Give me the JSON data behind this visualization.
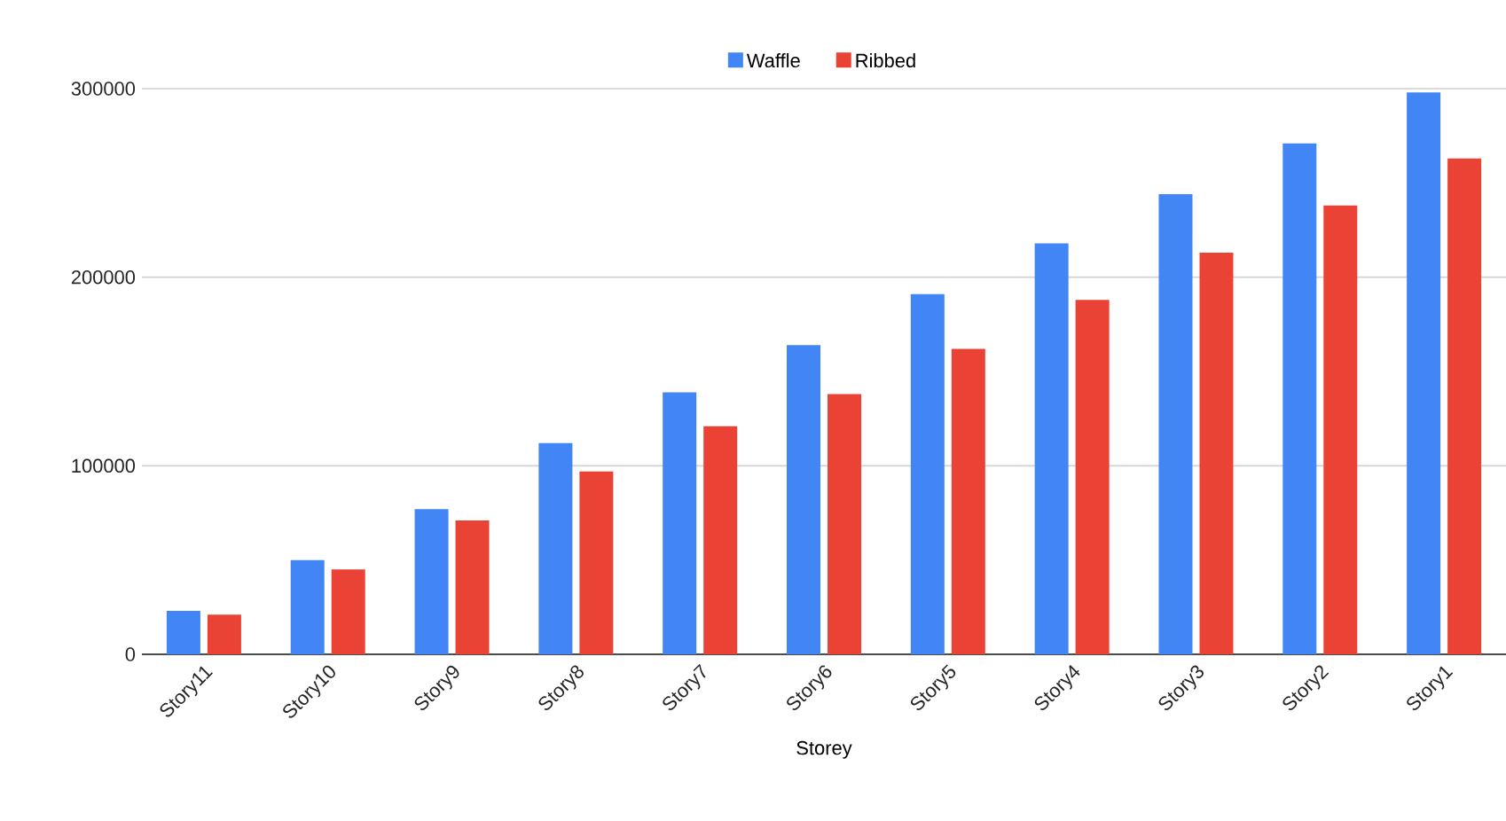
{
  "chart_data": {
    "type": "bar",
    "xlabel": "Storey",
    "categories": [
      "Story11",
      "Story10",
      "Story9",
      "Story8",
      "Story7",
      "Story6",
      "Story5",
      "Story4",
      "Story3",
      "Story2",
      "Story1"
    ],
    "series": [
      {
        "name": "Waffle",
        "color": "#4285f4",
        "values": [
          23000,
          50000,
          77000,
          112000,
          139000,
          164000,
          191000,
          218000,
          244000,
          271000,
          298000
        ]
      },
      {
        "name": "Ribbed",
        "color": "#ea4335",
        "values": [
          21000,
          45000,
          71000,
          97000,
          121000,
          138000,
          162000,
          188000,
          213000,
          238000,
          263000
        ]
      }
    ],
    "ylim": [
      0,
      300000
    ],
    "yticks": [
      0,
      100000,
      200000,
      300000
    ],
    "grid": "y",
    "legend": "top"
  }
}
